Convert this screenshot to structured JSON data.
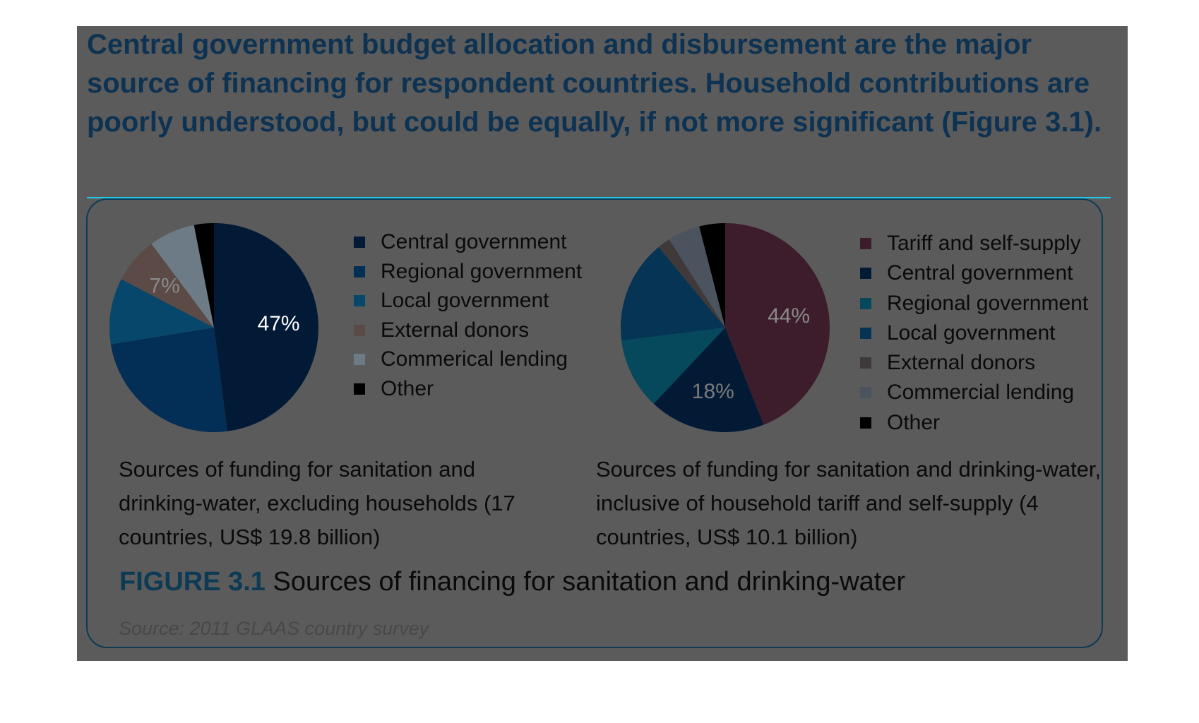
{
  "headline": "Central government budget allocation and disbursement are the major source of financing for respondent countries. Household contributions are poorly understood, but could be equally, if not more significant (Figure 3.1).",
  "figure": {
    "number": "FIGURE 3.1",
    "title": "Sources of financing for sanitation and drinking-water",
    "source": "Source: 2011 GLAAS country survey"
  },
  "chart_data": [
    {
      "type": "pie",
      "title": "Sources of funding for sanitation and drinking-water, excluding households (17 countries, US$ 19.8 billion)",
      "legend_position": "right",
      "labels": [
        "Central government",
        "Regional government",
        "Local government",
        "External donors",
        "Commerical lending",
        "Other"
      ],
      "values": [
        47,
        24,
        10,
        7,
        7,
        3
      ],
      "data_labels": [
        "47%",
        "",
        "",
        "7%",
        "",
        ""
      ],
      "colors": [
        "#021a35",
        "#032e55",
        "#06476b",
        "#5b4a46",
        "#6c7b85",
        "#000000"
      ]
    },
    {
      "type": "pie",
      "title": "Sources of funding for sanitation and drinking-water, inclusive of household tariff and self-supply (4 countries, US$ 10.1 billion)",
      "legend_position": "right",
      "labels": [
        "Tariff and self-supply",
        "Central government",
        "Regional government",
        "Local government",
        "External donors",
        "Commercial lending",
        "Other"
      ],
      "values": [
        44,
        18,
        11,
        16,
        2,
        5,
        4
      ],
      "data_labels": [
        "44%",
        "18%",
        "",
        "",
        "",
        "",
        ""
      ],
      "colors": [
        "#3d1d2b",
        "#031a35",
        "#06495d",
        "#053454",
        "#40393a",
        "#4b545e",
        "#000000"
      ]
    }
  ]
}
